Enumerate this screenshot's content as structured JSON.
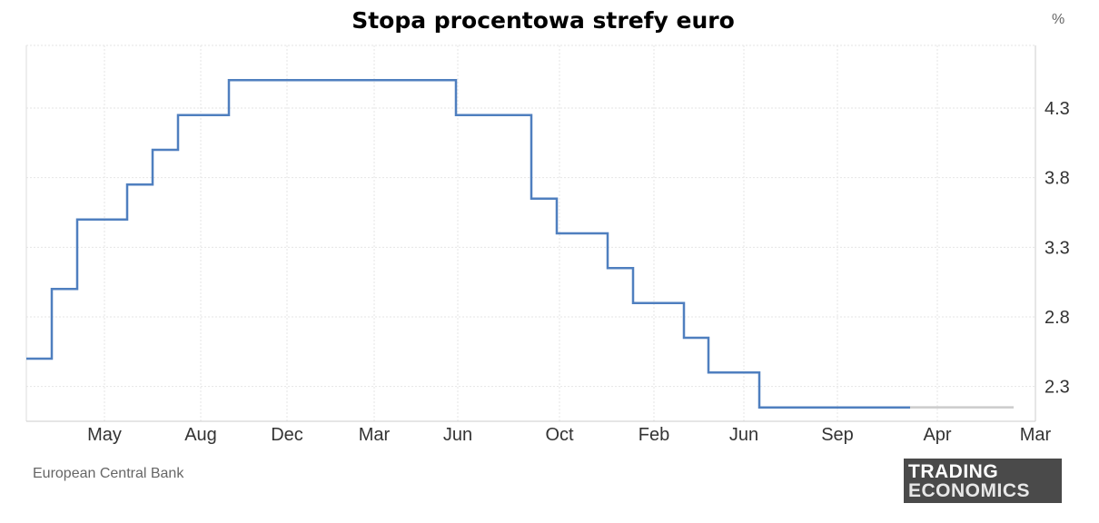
{
  "chart_data": {
    "type": "line",
    "step": true,
    "title": "Stopa procentowa strefy euro",
    "unit": "%",
    "source": "European Central Bank",
    "xlabel": "",
    "ylabel": "",
    "ylim": [
      2.05,
      4.75
    ],
    "yticks": [
      2.3,
      2.8,
      3.3,
      3.8,
      4.3
    ],
    "y_axis_position": "right",
    "grid": true,
    "legend": "none",
    "xtick_labels": [
      "May",
      "Aug",
      "Dec",
      "Mar",
      "Jun",
      "Oct",
      "Feb",
      "Jun",
      "Sep",
      "Apr",
      "Mar"
    ],
    "series": [
      {
        "color": "#4f7fbf",
        "values": [
          2.5,
          3.0,
          3.5,
          3.75,
          4.0,
          4.25,
          4.5,
          4.25,
          3.65,
          3.4,
          3.15,
          2.9,
          2.65,
          2.4,
          2.15
        ]
      },
      {
        "color": "#cccccc",
        "values": [
          2.15,
          2.15
        ]
      }
    ]
  },
  "logo": {
    "line1": "TRADING",
    "line2": "ECONOMICS"
  }
}
